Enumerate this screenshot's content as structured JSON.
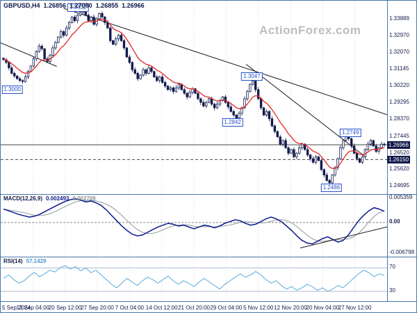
{
  "watermark": "ActionForex.com",
  "header": {
    "symbol_period": "GBPUSD,H4",
    "open": "1.26856",
    "high": "1.27080",
    "low": "1.26855",
    "close": "1.26966"
  },
  "colors": {
    "frame": "#4a76a8",
    "candle": "#141b4d",
    "candle_up_fill": "#ffffff",
    "ma": "#e02828",
    "macd_main": "#0a1a8c",
    "macd_signal": "#9aa0a6",
    "rsi": "#74b6e2",
    "label_blue": "#2350c8",
    "grid": "#dcdcdc",
    "level_line": "#444444",
    "trendline": "#1a1a1a",
    "axis_text": "#10194a",
    "watermark": "#bdbdbd",
    "rsi_level": "#aab9cd"
  },
  "chart_data": {
    "type": "candlestick",
    "title": "GBPUSD,H4",
    "x_tick_labels": [
      "5 Sep 2024",
      "13 Sep 04:00",
      "20 Sep 12:00",
      "27 Sep 20:00",
      "7 Oct 04:00",
      "14 Oct 12:00",
      "21 Oct 20:00",
      "29 Oct 04:00",
      "5 Nov 12:00",
      "12 Nov 20:00",
      "20 Nov 04:00",
      "27 Nov 12:00"
    ],
    "price": {
      "ylim": [
        1.2425,
        1.349
      ],
      "axis_ticks": [
        "1.33889",
        "1.32970",
        "1.32070",
        "1.31145",
        "1.30220",
        "1.29295",
        "1.28370",
        "1.27445",
        "1.26520",
        "1.25620",
        "1.24695"
      ],
      "closes": [
        1.3165,
        1.315,
        1.312,
        1.309,
        1.3075,
        1.306,
        1.305,
        1.3045,
        1.307,
        1.31,
        1.313,
        1.317,
        1.321,
        1.324,
        1.3225,
        1.317,
        1.3155,
        1.319,
        1.323,
        1.326,
        1.329,
        1.332,
        1.33,
        1.334,
        1.337,
        1.34,
        1.338,
        1.341,
        1.3425,
        1.3432,
        1.341,
        1.338,
        1.34,
        1.336,
        1.339,
        1.342,
        1.34,
        1.337,
        1.334,
        1.327,
        1.325,
        1.328,
        1.33,
        1.327,
        1.323,
        1.318,
        1.315,
        1.311,
        1.309,
        1.306,
        1.308,
        1.311,
        1.309,
        1.312,
        1.31,
        1.307,
        1.305,
        1.307,
        1.304,
        1.302,
        1.3,
        1.301,
        1.299,
        1.301,
        1.303,
        1.3,
        1.298,
        1.296,
        1.2985,
        1.3005,
        1.298,
        1.295,
        1.293,
        1.291,
        1.293,
        1.295,
        1.292,
        1.29,
        1.292,
        1.294,
        1.296,
        1.293,
        1.2905,
        1.288,
        1.286,
        1.2844,
        1.287,
        1.29,
        1.295,
        1.299,
        1.303,
        1.3047,
        1.3,
        1.295,
        1.29,
        1.286,
        1.288,
        1.284,
        1.28,
        1.277,
        1.274,
        1.27,
        1.272,
        1.268,
        1.265,
        1.267,
        1.263,
        1.265,
        1.268,
        1.27,
        1.267,
        1.264,
        1.262,
        1.26,
        1.263,
        1.261,
        1.256,
        1.253,
        1.25,
        1.2487,
        1.253,
        1.257,
        1.262,
        1.268,
        1.272,
        1.275,
        1.273,
        1.269,
        1.265,
        1.262,
        1.26,
        1.263,
        1.267,
        1.27,
        1.272,
        1.269,
        1.266,
        1.268,
        1.27,
        1.2697
      ]
    },
    "levels": {
      "current_price": 1.26966,
      "current_price_label": "1.26966",
      "dashed_level": 1.2615,
      "dashed_level_label": "1.26150"
    },
    "swings": [
      {
        "text": "1.3432",
        "xf": 0.2,
        "price": 1.3452
      },
      {
        "text": "1.3000",
        "xf": 0.03,
        "price": 1.3
      },
      {
        "text": "1.2842",
        "xf": 0.6,
        "price": 1.282
      },
      {
        "text": "1.3047",
        "xf": 0.65,
        "price": 1.3072
      },
      {
        "text": "1.2749",
        "xf": 0.905,
        "price": 1.2762
      },
      {
        "text": "1.2486",
        "xf": 0.856,
        "price": 1.246
      }
    ],
    "trendlines": [
      {
        "x1f": 0.0,
        "p1": 1.3258,
        "x2f": 0.145,
        "p2": 1.3128
      },
      {
        "x1f": 0.163,
        "p1": 1.3448,
        "x2f": 1.0,
        "p2": 1.2862
      },
      {
        "x1f": 0.635,
        "p1": 1.314,
        "x2f": 0.945,
        "p2": 1.2628
      }
    ],
    "macd": {
      "type": "line",
      "label": "MACD(12,26,9)",
      "main_value": "0.002493",
      "signal_value": "0.002709",
      "ylim": [
        -0.0078,
        0.0062
      ],
      "axis_ticks": [
        {
          "label": "0.005359",
          "v": 0.005359,
          "bold": false
        },
        {
          "label": "0.00",
          "v": 0.0,
          "bold": true
        },
        {
          "label": "-0.006798",
          "v": -0.006798,
          "bold": false
        }
      ],
      "trendline": {
        "x1f": 0.775,
        "v1": -0.0057,
        "x2f": 1.0,
        "v2": -0.001
      },
      "values": [
        0.003,
        0.0026,
        0.0022,
        0.0018,
        0.0015,
        0.0012,
        0.0014,
        0.0018,
        0.0024,
        0.003,
        0.0036,
        0.0042,
        0.0047,
        0.0051,
        0.0053,
        0.005,
        0.0046,
        0.0048,
        0.0044,
        0.0038,
        0.0028,
        0.0016,
        0.0004,
        -0.0008,
        -0.0018,
        -0.0026,
        -0.003,
        -0.0028,
        -0.0022,
        -0.0016,
        -0.001,
        -0.0006,
        -0.0002,
        -0.0004,
        -0.0008,
        -0.0006,
        -0.001,
        -0.0014,
        -0.001,
        -0.0006,
        -0.0008,
        -0.0012,
        -0.0008,
        -0.0002,
        0.0002,
        0.0006,
        0.0004,
        -0.0002,
        -0.0006,
        -0.0004,
        0.0002,
        0.0008,
        0.0012,
        0.0008,
        0.0002,
        -0.0008,
        -0.0018,
        -0.003,
        -0.004,
        -0.0046,
        -0.0048,
        -0.0042,
        -0.0036,
        -0.0032,
        -0.0038,
        -0.0044,
        -0.004,
        -0.0028,
        -0.0012,
        0.0004,
        0.0016,
        0.0026,
        0.0033,
        0.003,
        0.0025
      ]
    },
    "rsi": {
      "type": "line",
      "label": "RSI(14)",
      "value": "57.1429",
      "levels": [
        70,
        30
      ],
      "ylim": [
        12,
        88
      ],
      "values": [
        52,
        58,
        50,
        44,
        48,
        56,
        62,
        55,
        60,
        66,
        63,
        70,
        74,
        68,
        72,
        65,
        70,
        62,
        66,
        58,
        50,
        42,
        36,
        44,
        52,
        46,
        40,
        48,
        54,
        50,
        44,
        50,
        56,
        48,
        42,
        48,
        44,
        38,
        46,
        52,
        46,
        40,
        34,
        42,
        48,
        54,
        60,
        54,
        58,
        64,
        58,
        50,
        44,
        48,
        40,
        34,
        38,
        32,
        36,
        42,
        38,
        32,
        36,
        30,
        34,
        40,
        36,
        44,
        52,
        60,
        66,
        62,
        55,
        60,
        57.1
      ]
    }
  }
}
